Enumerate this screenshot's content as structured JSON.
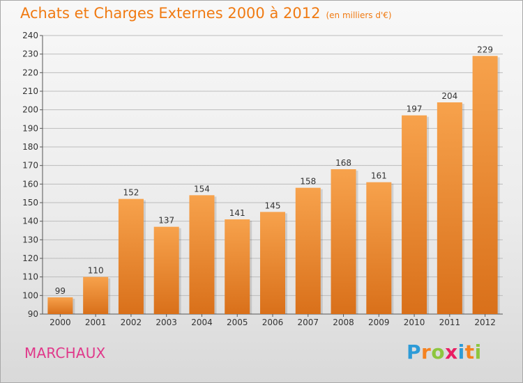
{
  "title": "Achats et Charges Externes 2000 à 2012",
  "subtitle": "(en milliers d'€)",
  "commune": "MARCHAUX",
  "logo": {
    "text": "Proxiti",
    "letter_colors": [
      "#2d9bd7",
      "#f58220",
      "#8dc63f",
      "#e91e63",
      "#2d9bd7",
      "#f58220",
      "#8dc63f"
    ]
  },
  "colors": {
    "title": "#f07a12",
    "commune": "#e0388a",
    "bar_top": "#f7a24c",
    "bar_bottom": "#d9701a",
    "grid": "#bcbcbc"
  },
  "chart_data": {
    "type": "bar",
    "categories": [
      "2000",
      "2001",
      "2002",
      "2003",
      "2004",
      "2005",
      "2006",
      "2007",
      "2008",
      "2009",
      "2010",
      "2011",
      "2012"
    ],
    "values": [
      99,
      110,
      152,
      137,
      154,
      141,
      145,
      158,
      168,
      161,
      197,
      204,
      229
    ],
    "ylim": [
      90,
      240
    ],
    "yticks": [
      90,
      100,
      110,
      120,
      130,
      140,
      150,
      160,
      170,
      180,
      190,
      200,
      210,
      220,
      230,
      240
    ],
    "grid": true,
    "data_labels": true
  }
}
